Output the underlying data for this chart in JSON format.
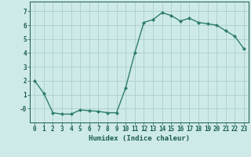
{
  "x": [
    0,
    1,
    2,
    3,
    4,
    5,
    6,
    7,
    8,
    9,
    10,
    11,
    12,
    13,
    14,
    15,
    16,
    17,
    18,
    19,
    20,
    21,
    22,
    23
  ],
  "y": [
    2.0,
    1.1,
    -0.3,
    -0.4,
    -0.4,
    -0.1,
    -0.15,
    -0.2,
    -0.3,
    -0.3,
    1.5,
    4.0,
    6.2,
    6.4,
    6.9,
    6.7,
    6.3,
    6.5,
    6.2,
    6.1,
    6.0,
    5.6,
    5.2,
    4.3
  ],
  "line_color": "#2e7d6e",
  "marker": "D",
  "marker_size": 2.0,
  "bg_color": "#ceeae8",
  "grid_color": "#aacfcc",
  "xlabel": "Humidex (Indice chaleur)",
  "xlim": [
    -0.5,
    23.5
  ],
  "ylim": [
    -1.0,
    7.7
  ],
  "yticks": [
    0,
    1,
    2,
    3,
    4,
    5,
    6,
    7
  ],
  "ytick_labels": [
    "-0",
    "1",
    "2",
    "3",
    "4",
    "5",
    "6",
    "7"
  ],
  "xticks": [
    0,
    1,
    2,
    3,
    4,
    5,
    6,
    7,
    8,
    9,
    10,
    11,
    12,
    13,
    14,
    15,
    16,
    17,
    18,
    19,
    20,
    21,
    22,
    23
  ],
  "text_color": "#1a5c50",
  "font_size_label": 6.5,
  "font_size_tick": 5.5,
  "line_width": 1.0
}
